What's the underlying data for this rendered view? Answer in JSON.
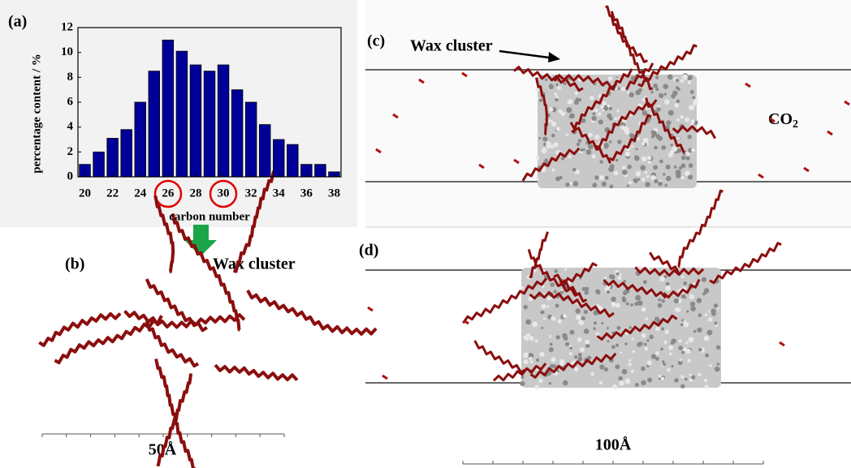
{
  "chart_data": {
    "type": "bar",
    "x_label": "carbon number",
    "y_label": "percentage content / %",
    "x": [
      20,
      21,
      22,
      23,
      24,
      25,
      26,
      27,
      28,
      29,
      30,
      31,
      32,
      33,
      34,
      35,
      36,
      37,
      38
    ],
    "values": [
      1,
      2,
      3.1,
      3.8,
      6,
      8.5,
      11,
      10.1,
      9,
      8.5,
      9,
      7,
      6,
      4.2,
      3,
      2.6,
      1,
      1,
      0.4
    ],
    "color": "#000099",
    "xlim": [
      19.5,
      38.5
    ],
    "xticks": [
      20,
      22,
      24,
      26,
      28,
      30,
      32,
      34,
      36,
      38
    ],
    "ylim": [
      0,
      12
    ],
    "yticks": [
      0,
      2,
      4,
      6,
      8,
      10,
      12
    ]
  },
  "panels": {
    "a": {
      "label": "(a)"
    },
    "b": {
      "label": "(b)",
      "caption": "Wax cluster",
      "scale": "50Å"
    },
    "c": {
      "label": "(c)",
      "caption": "Wax cluster",
      "co2": {
        "text": "CO",
        "sub": "2"
      }
    },
    "d": {
      "label": "(d)",
      "scale": "100Å"
    }
  }
}
